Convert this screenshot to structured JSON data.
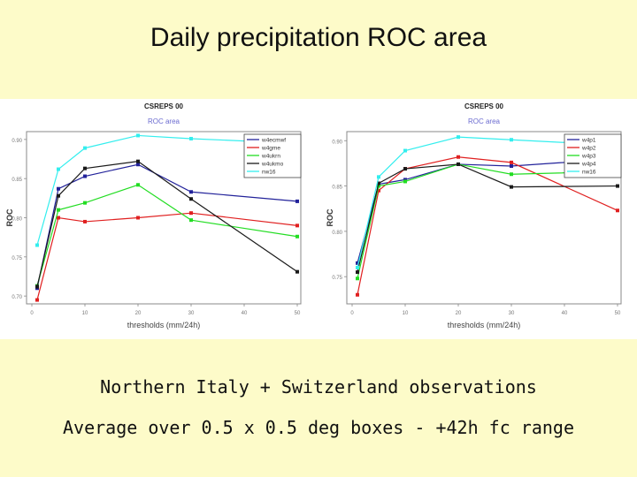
{
  "slide": {
    "title": "Daily precipitation ROC area",
    "caption_line1": "Northern Italy + Switzerland observations",
    "caption_line2": "Average over 0.5 x 0.5 deg boxes - +42h fc range"
  },
  "chart_data": [
    {
      "type": "line",
      "title": "CSREPS 00",
      "subtitle": "ROC area",
      "xlabel": "thresholds (mm/24h)",
      "ylabel": "ROC",
      "x": [
        1,
        5,
        10,
        20,
        30,
        50
      ],
      "xticks": [
        0,
        10,
        20,
        30,
        40,
        50
      ],
      "xlim": [
        0,
        50
      ],
      "yticks": [
        0.7,
        0.75,
        0.8,
        0.85,
        0.9
      ],
      "ylim": [
        0.69,
        0.91
      ],
      "legend_position": "top-right",
      "grid": false,
      "series": [
        {
          "name": "w4ecmwf",
          "color": "#22229a",
          "values": [
            0.71,
            0.837,
            0.853,
            0.868,
            0.833,
            0.821
          ]
        },
        {
          "name": "w4gme",
          "color": "#e02020",
          "values": [
            0.695,
            0.8,
            0.795,
            0.8,
            0.806,
            0.79
          ]
        },
        {
          "name": "w4ukrn",
          "color": "#22dd22",
          "values": [
            0.713,
            0.81,
            0.819,
            0.842,
            0.797,
            0.776
          ]
        },
        {
          "name": "w4ukmo",
          "color": "#1a1a1a",
          "values": [
            0.712,
            0.828,
            0.863,
            0.872,
            0.824,
            0.731
          ]
        },
        {
          "name": "nw16",
          "color": "#33eeee",
          "values": [
            0.765,
            0.862,
            0.889,
            0.905,
            0.901,
            0.895
          ]
        }
      ]
    },
    {
      "type": "line",
      "title": "CSREPS 00",
      "subtitle": "ROC area",
      "xlabel": "thresholds (mm/24h)",
      "ylabel": "ROC",
      "x": [
        1,
        5,
        10,
        20,
        30,
        50
      ],
      "xticks": [
        0,
        10,
        20,
        30,
        40,
        50
      ],
      "xlim": [
        0,
        50
      ],
      "yticks": [
        0.75,
        0.8,
        0.85,
        0.9
      ],
      "ylim": [
        0.72,
        0.91
      ],
      "legend_position": "top-right",
      "grid": false,
      "series": [
        {
          "name": "w4p1",
          "color": "#22229a",
          "values": [
            0.765,
            0.852,
            0.857,
            0.874,
            0.872,
            0.88
          ]
        },
        {
          "name": "w4p2",
          "color": "#e02020",
          "values": [
            0.73,
            0.845,
            0.869,
            0.882,
            0.876,
            0.823
          ]
        },
        {
          "name": "w4p3",
          "color": "#22dd22",
          "values": [
            0.748,
            0.85,
            0.855,
            0.874,
            0.863,
            0.866
          ]
        },
        {
          "name": "w4p4",
          "color": "#1a1a1a",
          "values": [
            0.755,
            0.853,
            0.869,
            0.874,
            0.849,
            0.85
          ]
        },
        {
          "name": "nw16",
          "color": "#33eeee",
          "values": [
            0.76,
            0.86,
            0.889,
            0.904,
            0.901,
            0.895
          ]
        }
      ]
    }
  ]
}
